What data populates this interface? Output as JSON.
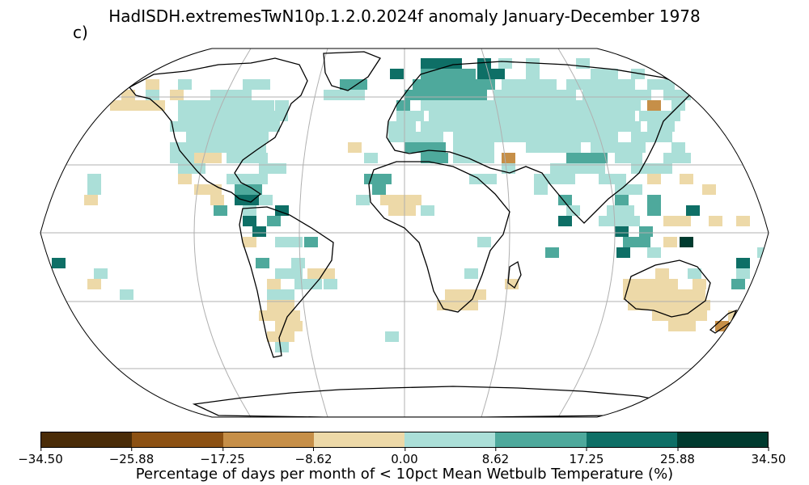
{
  "title": "HadISDH.extremesTwN10p.1.2.0.2024f anomaly January-December 1978",
  "panel_label": "c)",
  "colorbar": {
    "label": "Percentage of days per month of < 10pct Mean Wetbulb Temperature (%)",
    "ticks": [
      "−34.50",
      "−25.88",
      "−17.25",
      "−8.62",
      "0.00",
      "8.62",
      "17.25",
      "25.88",
      "34.50"
    ],
    "colors": [
      "#4a2c08",
      "#8c5113",
      "#c68f48",
      "#edd9a8",
      "#abdfd8",
      "#4ea99c",
      "#0e6f66",
      "#003b2f"
    ]
  },
  "map": {
    "projection": "robinson",
    "gridlines": true,
    "palette": {
      "light_tan": "#edd9a8",
      "tan": "#c68f48",
      "light_teal": "#abdfd8",
      "teal": "#4ea99c",
      "dark_teal": "#0e6f66",
      "darkest_teal": "#003b2f"
    }
  }
}
